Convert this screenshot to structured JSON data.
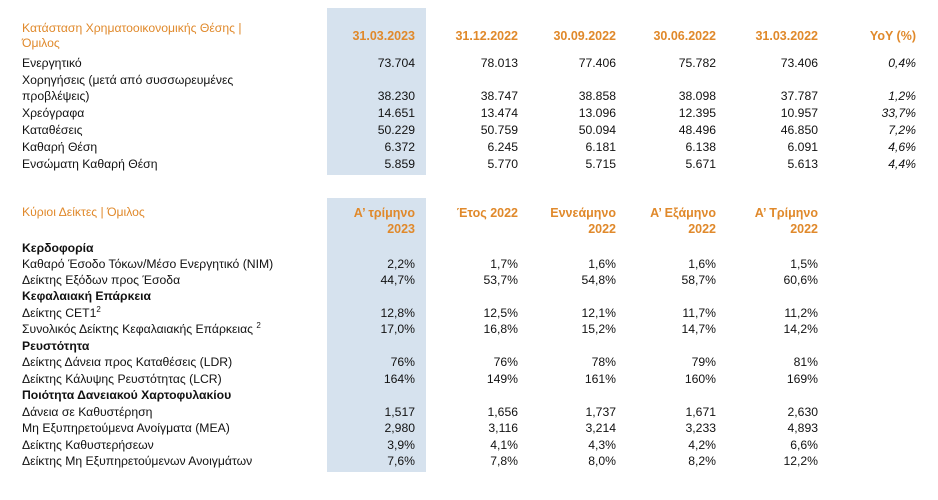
{
  "table1": {
    "title_line1": "Κατάσταση Χρηματοοικονομικής Θέσης |",
    "title_line2": "Όμιλος",
    "columns": [
      "31.03.2023",
      "31.12.2022",
      "30.09.2022",
      "30.06.2022",
      "31.03.2022",
      "YoY (%)"
    ],
    "rows": [
      {
        "label": "Ενεργητικό",
        "values": [
          "73.704",
          "78.013",
          "77.406",
          "75.782",
          "73.406",
          "0,4%"
        ]
      },
      {
        "label_line1": "Χορηγήσεις (μετά από συσσωρευμένες",
        "label_line2": "προβλέψεις)",
        "values": [
          "38.230",
          "38.747",
          "38.858",
          "38.098",
          "37.787",
          "1,2%"
        ]
      },
      {
        "label": "Χρεόγραφα",
        "values": [
          "14.651",
          "13.474",
          "13.096",
          "12.395",
          "10.957",
          "33,7%"
        ]
      },
      {
        "label": "Καταθέσεις",
        "values": [
          "50.229",
          "50.759",
          "50.094",
          "48.496",
          "46.850",
          "7,2%"
        ]
      },
      {
        "label": "Καθαρή Θέση",
        "values": [
          "6.372",
          "6.245",
          "6.181",
          "6.138",
          "6.091",
          "4,6%"
        ]
      },
      {
        "label": "Ενσώματη Καθαρή Θέση",
        "values": [
          "5.859",
          "5.770",
          "5.715",
          "5.671",
          "5.613",
          "4,4%"
        ]
      }
    ]
  },
  "table2": {
    "title": "Κύριοι Δείκτες | Όμιλος",
    "columns": [
      {
        "line1": "Α’ τρίμηνο",
        "line2": "2023"
      },
      {
        "line1": "Έτος 2022",
        "line2": ""
      },
      {
        "line1": "Εννεάμηνο",
        "line2": "2022"
      },
      {
        "line1": "Α’ Εξάμηνο",
        "line2": "2022"
      },
      {
        "line1": "Α’ Τρίμηνο",
        "line2": "2022"
      }
    ],
    "sections": [
      {
        "title": "Κερδοφορία",
        "rows": [
          {
            "label": "Καθαρό Έσοδο Τόκων/Μέσο Ενεργητικό (NIM)",
            "values": [
              "2,2%",
              "1,7%",
              "1,6%",
              "1,6%",
              "1,5%"
            ]
          },
          {
            "label": "Δείκτης Εξόδων προς Έσοδα",
            "values": [
              "44,7%",
              "53,7%",
              "54,8%",
              "58,7%",
              "60,6%"
            ]
          }
        ]
      },
      {
        "title": "Κεφαλαιακή Επάρκεια",
        "rows": [
          {
            "label": "Δείκτης CET1",
            "sup": "2",
            "values": [
              "12,8%",
              "12,5%",
              "12,1%",
              "11,7%",
              "11,2%"
            ]
          },
          {
            "label": "Συνολικός Δείκτης Κεφαλαιακής Επάρκειας ",
            "sup": "2",
            "values": [
              "17,0%",
              "16,8%",
              "15,2%",
              "14,7%",
              "14,2%"
            ]
          }
        ]
      },
      {
        "title": "Ρευστότητα",
        "rows": [
          {
            "label": "Δείκτης Δάνεια προς Καταθέσεις (LDR)",
            "values": [
              "76%",
              "76%",
              "78%",
              "79%",
              "81%"
            ]
          },
          {
            "label": "Δείκτης Κάλυψης Ρευστότητας (LCR)",
            "values": [
              "164%",
              "149%",
              "161%",
              "160%",
              "169%"
            ]
          }
        ]
      },
      {
        "title": "Ποιότητα Δανειακού Χαρτοφυλακίου",
        "rows": [
          {
            "label": "Δάνεια σε Καθυστέρηση",
            "values": [
              "1,517",
              "1,656",
              "1,737",
              "1,671",
              "2,630"
            ]
          },
          {
            "label": "Μη Εξυπηρετούμενα Ανοίγματα (ΜΕΑ)",
            "values": [
              "2,980",
              "3,116",
              "3,214",
              "3,233",
              "4,893"
            ]
          },
          {
            "label": "Δείκτης Καθυστερήσεων",
            "values": [
              "3,9%",
              "4,1%",
              "4,3%",
              "4,2%",
              "6,6%"
            ]
          },
          {
            "label": "Δείκτης Μη Εξυπηρετούμενων Ανοιγμάτων",
            "values": [
              "7,6%",
              "7,8%",
              "8,0%",
              "8,2%",
              "12,2%"
            ]
          }
        ]
      }
    ]
  }
}
